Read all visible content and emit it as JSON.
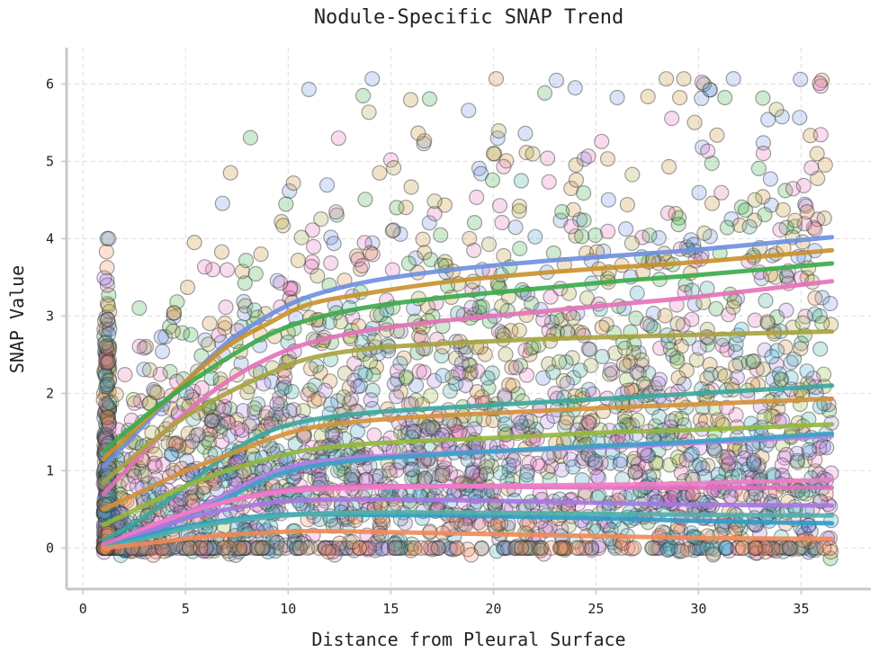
{
  "chart_data": {
    "type": "scatter",
    "title": "Nodule-Specific SNAP Trend",
    "xlabel": "Distance from Pleural Surface",
    "ylabel": "SNAP Value",
    "xlim": [
      -0.8,
      38.4
    ],
    "ylim": [
      -0.53,
      6.47
    ],
    "xticks": [
      0,
      5,
      10,
      15,
      20,
      25,
      30,
      35
    ],
    "yticks": [
      0,
      1,
      2,
      3,
      4,
      5,
      6
    ],
    "grid": true,
    "legend": "none",
    "scatter_x_range": [
      1,
      36.5
    ],
    "series": [
      {
        "color": "#6d8fe0",
        "x": [
          1,
          3,
          5,
          7,
          9,
          11,
          14,
          18,
          22,
          26,
          30,
          36.5
        ],
        "y": [
          1.05,
          1.6,
          2.15,
          2.65,
          3.0,
          3.25,
          3.45,
          3.6,
          3.7,
          3.78,
          3.86,
          4.02
        ]
      },
      {
        "color": "#c9902c",
        "x": [
          1,
          3,
          5,
          7,
          9,
          11,
          14,
          18,
          22,
          26,
          30,
          36.5
        ],
        "y": [
          1.15,
          1.65,
          2.15,
          2.6,
          2.9,
          3.15,
          3.3,
          3.45,
          3.55,
          3.63,
          3.7,
          3.85
        ]
      },
      {
        "color": "#3aaa48",
        "x": [
          1,
          3,
          5,
          7,
          9,
          11,
          14,
          18,
          22,
          26,
          30,
          36.5
        ],
        "y": [
          1.25,
          1.7,
          2.1,
          2.45,
          2.75,
          2.95,
          3.12,
          3.25,
          3.35,
          3.45,
          3.53,
          3.68
        ]
      },
      {
        "color": "#e570b8",
        "x": [
          1,
          3,
          5,
          7,
          9,
          11,
          14,
          18,
          22,
          26,
          30,
          36.5
        ],
        "y": [
          0.7,
          1.25,
          1.75,
          2.15,
          2.45,
          2.65,
          2.82,
          2.95,
          3.05,
          3.15,
          3.25,
          3.45
        ]
      },
      {
        "color": "#a8a23e",
        "x": [
          1,
          3,
          5,
          7,
          9,
          11,
          14,
          18,
          22,
          26,
          30,
          36.5
        ],
        "y": [
          0.85,
          1.3,
          1.7,
          2.0,
          2.25,
          2.45,
          2.58,
          2.65,
          2.7,
          2.73,
          2.76,
          2.8
        ]
      },
      {
        "color": "#3aa69c",
        "x": [
          1,
          3,
          5,
          7,
          9,
          11,
          14,
          18,
          22,
          26,
          30,
          36.5
        ],
        "y": [
          0.1,
          0.4,
          0.8,
          1.2,
          1.5,
          1.65,
          1.75,
          1.82,
          1.88,
          1.94,
          2.0,
          2.1
        ]
      },
      {
        "color": "#d5903a",
        "x": [
          1,
          3,
          5,
          7,
          9,
          11,
          14,
          18,
          22,
          26,
          30,
          36.5
        ],
        "y": [
          0.5,
          0.75,
          1.0,
          1.2,
          1.4,
          1.55,
          1.65,
          1.72,
          1.77,
          1.82,
          1.86,
          1.93
        ]
      },
      {
        "color": "#92b83a",
        "x": [
          1,
          3,
          5,
          7,
          9,
          11,
          14,
          18,
          22,
          26,
          30,
          36.5
        ],
        "y": [
          0.3,
          0.55,
          0.8,
          1.0,
          1.15,
          1.27,
          1.35,
          1.4,
          1.45,
          1.5,
          1.53,
          1.6
        ]
      },
      {
        "color": "#b07ee6",
        "x": [
          1,
          3,
          5,
          7,
          9,
          11,
          14,
          18,
          22,
          26,
          30,
          36.5
        ],
        "y": [
          0.0,
          0.2,
          0.45,
          0.7,
          0.95,
          1.1,
          1.18,
          1.23,
          1.27,
          1.31,
          1.36,
          1.45
        ]
      },
      {
        "color": "#3aa2c6",
        "x": [
          1,
          3,
          5,
          7,
          9,
          11,
          14,
          18,
          22,
          26,
          30,
          36.5
        ],
        "y": [
          0.0,
          0.15,
          0.4,
          0.65,
          0.9,
          1.05,
          1.15,
          1.22,
          1.28,
          1.33,
          1.38,
          1.48
        ]
      },
      {
        "color": "#e06ec0",
        "x": [
          1,
          3,
          5,
          7,
          9,
          11,
          14,
          18,
          22,
          26,
          30,
          36.5
        ],
        "y": [
          0.05,
          0.25,
          0.45,
          0.6,
          0.72,
          0.78,
          0.8,
          0.8,
          0.79,
          0.78,
          0.78,
          0.78
        ]
      },
      {
        "color": "#f07cc6",
        "x": [
          1,
          3,
          5,
          7,
          9,
          11,
          14,
          18,
          22,
          26,
          30,
          36.5
        ],
        "y": [
          0.0,
          0.25,
          0.45,
          0.6,
          0.7,
          0.75,
          0.78,
          0.8,
          0.81,
          0.82,
          0.84,
          0.88
        ]
      },
      {
        "color": "#a678e0",
        "x": [
          1,
          3,
          5,
          7,
          9,
          11,
          14,
          18,
          22,
          26,
          30,
          36.5
        ],
        "y": [
          0.0,
          0.2,
          0.38,
          0.5,
          0.58,
          0.62,
          0.63,
          0.62,
          0.6,
          0.58,
          0.56,
          0.55
        ]
      },
      {
        "color": "#2e9cc8",
        "x": [
          1,
          3,
          5,
          7,
          9,
          11,
          14,
          18,
          22,
          26,
          30,
          36.5
        ],
        "y": [
          0.0,
          0.15,
          0.28,
          0.36,
          0.42,
          0.44,
          0.43,
          0.42,
          0.4,
          0.38,
          0.35,
          0.32
        ]
      },
      {
        "color": "#4fb0a8",
        "x": [
          1,
          3,
          5,
          7,
          9,
          11,
          14,
          18,
          22,
          26,
          30,
          36.5
        ],
        "y": [
          0.0,
          0.12,
          0.25,
          0.34,
          0.4,
          0.44,
          0.46,
          0.46,
          0.45,
          0.44,
          0.43,
          0.42
        ]
      },
      {
        "color": "#ee8a58",
        "x": [
          1,
          3,
          5,
          7,
          9,
          11,
          14,
          18,
          22,
          26,
          30,
          36.5
        ],
        "y": [
          0.0,
          0.06,
          0.12,
          0.17,
          0.2,
          0.22,
          0.21,
          0.19,
          0.17,
          0.15,
          0.13,
          0.12
        ]
      }
    ]
  }
}
